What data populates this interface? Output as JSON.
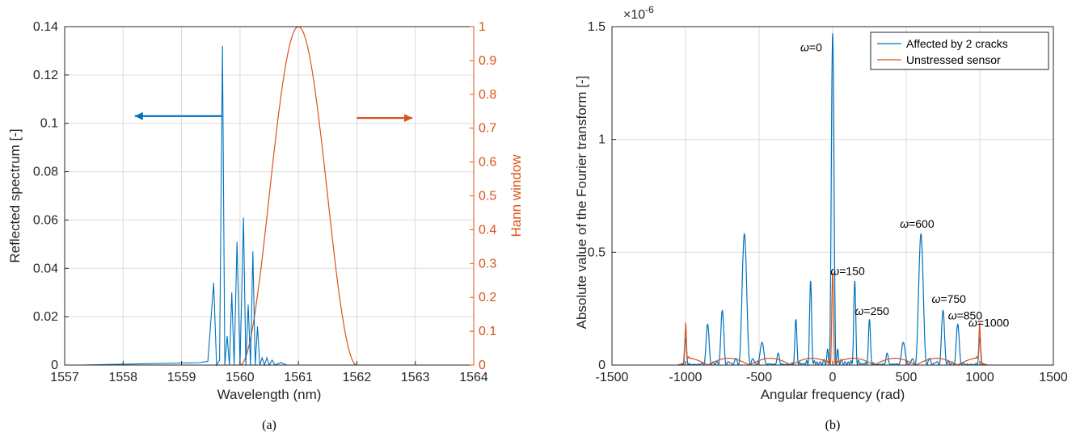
{
  "chart_data": [
    {
      "type": "line",
      "panel": "a",
      "caption": "(a)",
      "xlabel": "Wavelength (nm)",
      "ylabel": "Reflected spectrum [-]",
      "y2label": "Hann window",
      "xlim": [
        1557,
        1564
      ],
      "ylim": [
        0,
        0.14
      ],
      "y2lim": [
        0,
        1
      ],
      "grid": true,
      "xticks": [
        1557,
        1558,
        1559,
        1560,
        1561,
        1562,
        1563,
        1564
      ],
      "yticks": [
        "0",
        "0.02",
        "0.04",
        "0.06",
        "0.08",
        "0.1",
        "0.12",
        "0.14"
      ],
      "y2ticks": [
        "0",
        "0.1",
        "0.2",
        "0.3",
        "0.4",
        "0.5",
        "0.6",
        "0.7",
        "0.8",
        "0.9",
        "1"
      ],
      "series": [
        {
          "axis": "left",
          "color": "#0072BD",
          "x": [
            1557.3,
            1559.3,
            1559.45,
            1559.55,
            1559.6,
            1559.65,
            1559.7,
            1559.74,
            1559.78,
            1559.82,
            1559.86,
            1559.9,
            1559.95,
            1560.0,
            1560.06,
            1560.1,
            1560.14,
            1560.18,
            1560.22,
            1560.26,
            1560.3,
            1560.34,
            1560.38,
            1560.42,
            1560.46,
            1560.5,
            1560.55,
            1560.6,
            1560.7,
            1560.8,
            1561.0,
            1563.3
          ],
          "values": [
            0.0,
            0.001,
            0.0015,
            0.034,
            0.0,
            0.002,
            0.132,
            0.0,
            0.012,
            0.0,
            0.03,
            0.0,
            0.051,
            0.0,
            0.061,
            0.0,
            0.025,
            0.0,
            0.047,
            0.0,
            0.016,
            0.0,
            0.003,
            0.0,
            0.003,
            0.0,
            0.002,
            0.0,
            0.001,
            0.0,
            0.0,
            0.0
          ]
        },
        {
          "axis": "right",
          "color": "#D95319",
          "function": "hann",
          "x_start": 1560.0,
          "x_end": 1562.0,
          "peak": 1
        }
      ],
      "annotations": [
        {
          "type": "arrow",
          "direction": "left",
          "color": "#0072BD"
        },
        {
          "type": "arrow",
          "direction": "right",
          "color": "#D95319"
        }
      ]
    },
    {
      "type": "line",
      "panel": "b",
      "caption": "(b)",
      "xlabel": "Angular frequency (rad)",
      "ylabel": "Absolute value of the Fourier transform [-]",
      "y_multiplier": "×10",
      "y_exponent": "-6",
      "xlim": [
        -1500,
        1500
      ],
      "ylim": [
        0,
        1.5
      ],
      "grid": true,
      "legend": "top-right",
      "xticks": [
        "-1500",
        "-1000",
        "-500",
        "0",
        "500",
        "1000",
        "1500"
      ],
      "yticks": [
        "0",
        "0.5",
        "1",
        "1.5"
      ],
      "series": [
        {
          "name": "Affected by 2 cracks",
          "color": "#0072BD",
          "peaks": [
            {
              "center": 0,
              "height": 1.47,
              "width": 24
            },
            {
              "center": -600,
              "height": 0.58,
              "width": 40
            },
            {
              "center": 600,
              "height": 0.58,
              "width": 40
            },
            {
              "center": -750,
              "height": 0.24,
              "width": 26
            },
            {
              "center": 750,
              "height": 0.24,
              "width": 26
            },
            {
              "center": -850,
              "height": 0.18,
              "width": 26
            },
            {
              "center": 850,
              "height": 0.18,
              "width": 26
            },
            {
              "center": -150,
              "height": 0.37,
              "width": 18
            },
            {
              "center": 150,
              "height": 0.37,
              "width": 18
            },
            {
              "center": -250,
              "height": 0.2,
              "width": 18
            },
            {
              "center": 250,
              "height": 0.2,
              "width": 18
            },
            {
              "center": -1000,
              "height": 0.12,
              "width": 18
            },
            {
              "center": 1000,
              "height": 0.12,
              "width": 18
            },
            {
              "center": -480,
              "height": 0.1,
              "width": 30
            },
            {
              "center": 480,
              "height": 0.1,
              "width": 30
            },
            {
              "center": -370,
              "height": 0.05,
              "width": 20
            },
            {
              "center": 370,
              "height": 0.05,
              "width": 20
            }
          ]
        },
        {
          "name": "Unstressed sensor",
          "color": "#D95319",
          "peaks": [
            {
              "center": 0,
              "height": 0.41,
              "width": 16
            },
            {
              "center": -1000,
              "height": 0.16,
              "width": 14
            },
            {
              "center": 1000,
              "height": 0.16,
              "width": 14
            }
          ],
          "ripple": 0.03
        }
      ],
      "annotations": [
        {
          "symbol": "ω",
          "text": "=0",
          "x": 0,
          "y": 1.47
        },
        {
          "symbol": "ω",
          "text": "=600",
          "x": 600,
          "y": 0.58
        },
        {
          "symbol": "ω",
          "text": "=150",
          "x": 150,
          "y": 0.37
        },
        {
          "symbol": "ω",
          "text": "=750",
          "x": 750,
          "y": 0.24
        },
        {
          "symbol": "ω",
          "text": "=250",
          "x": 250,
          "y": 0.2
        },
        {
          "symbol": "ω",
          "text": "=850",
          "x": 850,
          "y": 0.18
        },
        {
          "symbol": "ω",
          "text": "=1000",
          "x": 1000,
          "y": 0.12
        }
      ]
    }
  ]
}
